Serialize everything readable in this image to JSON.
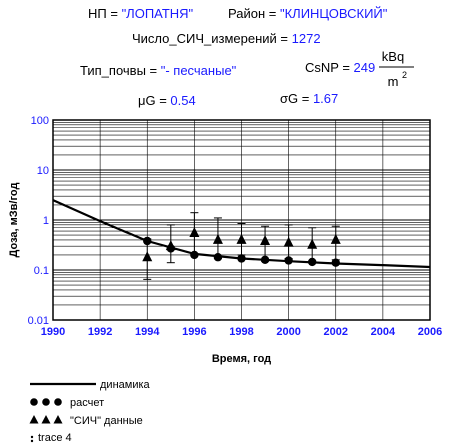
{
  "header": {
    "np_label": "НП = ",
    "np_value": "\"ЛОПАТНЯ\"",
    "region_label": "Район = ",
    "region_value": "\"КЛИНЦОВСКИЙ\"",
    "count_label": "Число_СИЧ_измерений = ",
    "count_value": "1272",
    "soil_label": "Тип_почвы = ",
    "soil_value": "\"- песчаные\"",
    "csnp_label": "CsNP = ",
    "csnp_value": "249",
    "csnp_unit_num": "kBq",
    "csnp_unit_den": "m",
    "csnp_unit_exp": "2",
    "mug_label": "μG = ",
    "mug_value": "0.54",
    "sigmag_label": "σG = ",
    "sigmag_value": "1.67"
  },
  "colors": {
    "value_text": "#1a1aff",
    "grid": "#000000",
    "series": "#000000"
  },
  "chart_data": {
    "type": "scatter",
    "xlabel": "Время, год",
    "ylabel": "Доза, мЗв/год",
    "xlim": [
      1990,
      2006
    ],
    "ylim": [
      0.01,
      100
    ],
    "yscale": "log",
    "grid": true,
    "legend_position": "bottom-left",
    "x_ticks": [
      "1990",
      "1992",
      "1994",
      "1996",
      "1998",
      "2000",
      "2002",
      "2004",
      "2006"
    ],
    "y_ticks": [
      "0.01",
      "0.1",
      "1",
      "10",
      "100"
    ],
    "series": [
      {
        "name": "динамика",
        "kind": "line",
        "x": [
          1990,
          1992,
          1994,
          1996,
          1998,
          2000,
          2002,
          2004,
          2006
        ],
        "y": [
          2.5,
          0.95,
          0.38,
          0.21,
          0.17,
          0.15,
          0.135,
          0.125,
          0.115
        ]
      },
      {
        "name": "расчет",
        "kind": "circles",
        "x": [
          1994,
          1995,
          1996,
          1997,
          1998,
          1999,
          2000,
          2001,
          2002
        ],
        "y": [
          0.38,
          0.27,
          0.2,
          0.18,
          0.17,
          0.16,
          0.155,
          0.145,
          0.14
        ]
      },
      {
        "name": "\"СИЧ\" данные",
        "kind": "triangles",
        "x": [
          1994,
          1995,
          1996,
          1997,
          1998,
          1999,
          2000,
          2001,
          2002
        ],
        "y": [
          0.18,
          0.3,
          0.55,
          0.4,
          0.4,
          0.38,
          0.35,
          0.32,
          0.4
        ],
        "y_low": [
          0.065,
          0.14,
          0.2,
          0.17,
          0.2,
          0.15,
          0.17,
          0.14,
          0.16
        ],
        "y_high": [
          0.42,
          0.8,
          1.4,
          1.1,
          0.85,
          0.75,
          0.8,
          0.7,
          0.75
        ]
      },
      {
        "name": "trace 4",
        "kind": "none",
        "x": [],
        "y": []
      }
    ]
  }
}
